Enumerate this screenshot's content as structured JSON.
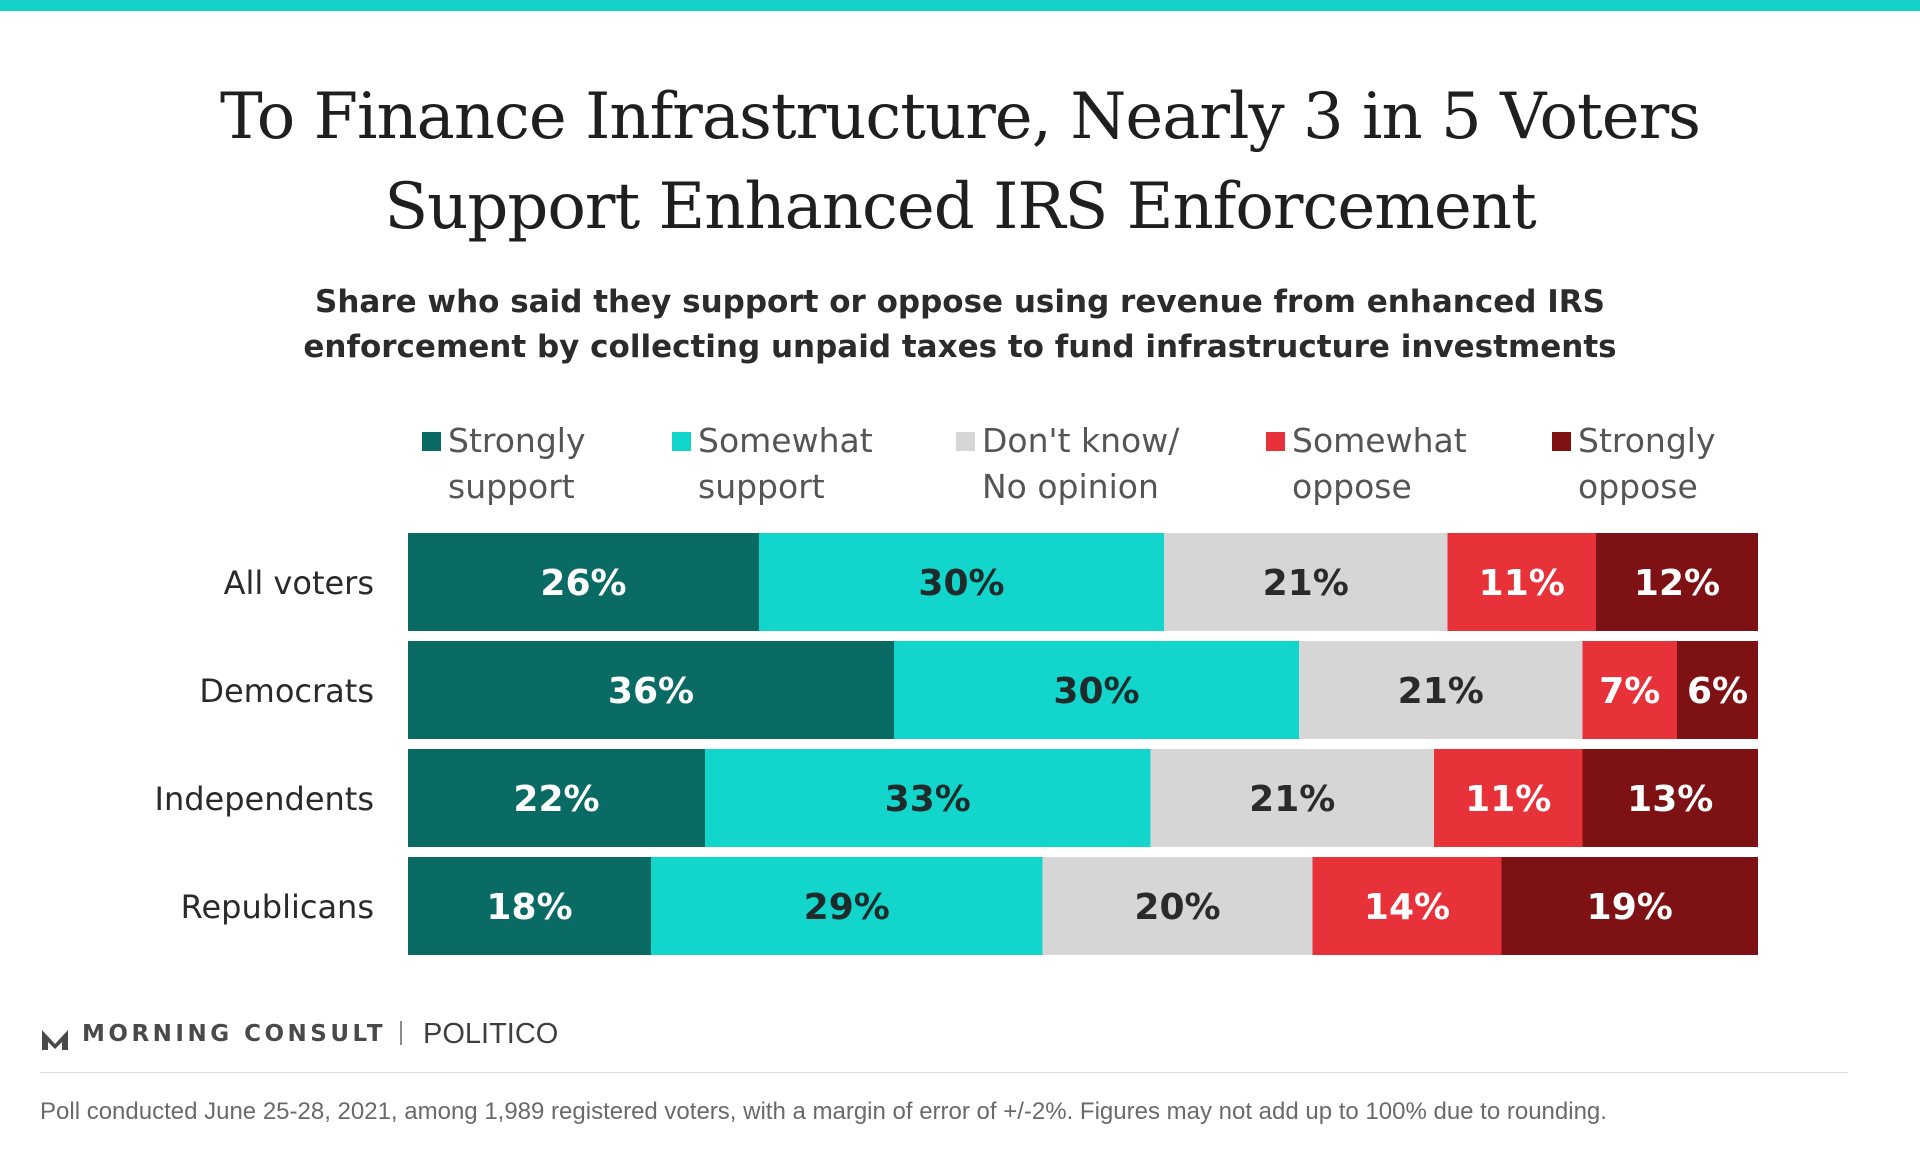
{
  "header": {
    "title_lines": [
      "To Finance Infrastructure, Nearly 3 in 5 Voters",
      "Support Enhanced IRS Enforcement"
    ],
    "subtitle_lines": [
      "Share who said they support or oppose using revenue from enhanced IRS",
      "enforcement by collecting unpaid taxes to fund infrastructure investments"
    ]
  },
  "legend": [
    {
      "lines": [
        "Strongly",
        "support"
      ],
      "color": "#0a6b65"
    },
    {
      "lines": [
        "Somewhat",
        "support"
      ],
      "color": "#12d6cc"
    },
    {
      "lines": [
        "Don't know/",
        "No opinion"
      ],
      "color": "#d6d6d6"
    },
    {
      "lines": [
        "Somewhat",
        "oppose"
      ],
      "color": "#e8323a"
    },
    {
      "lines": [
        "Strongly",
        "oppose"
      ],
      "color": "#7e1114"
    }
  ],
  "chart_data": {
    "type": "bar",
    "orientation": "horizontal",
    "stacked": true,
    "unit": "%",
    "categories": [
      "All voters",
      "Democrats",
      "Independents",
      "Republicans"
    ],
    "series": [
      {
        "name": "Strongly support",
        "values": [
          26,
          36,
          22,
          18
        ],
        "color": "#0a6b65",
        "label_color": "#ffffff"
      },
      {
        "name": "Somewhat support",
        "values": [
          30,
          30,
          33,
          29
        ],
        "color": "#12d6cc",
        "label_color": "#1f2a2a"
      },
      {
        "name": "Don't know/ No opinion",
        "values": [
          21,
          21,
          21,
          20
        ],
        "color": "#d6d6d6",
        "label_color": "#2a2a2a"
      },
      {
        "name": "Somewhat oppose",
        "values": [
          11,
          7,
          11,
          14
        ],
        "color": "#e8323a",
        "label_color": "#ffffff"
      },
      {
        "name": "Strongly oppose",
        "values": [
          12,
          6,
          13,
          19
        ],
        "color": "#7e1114",
        "label_color": "#ffffff"
      }
    ],
    "legend_position": "top",
    "grid": false
  },
  "footer": {
    "brand": "MORNING CONSULT",
    "partner": "POLITICO",
    "note": "Poll conducted June 25-28, 2021, among 1,989 registered voters, with a margin of error of +/-2%. Figures may not add up to 100% due to rounding."
  }
}
